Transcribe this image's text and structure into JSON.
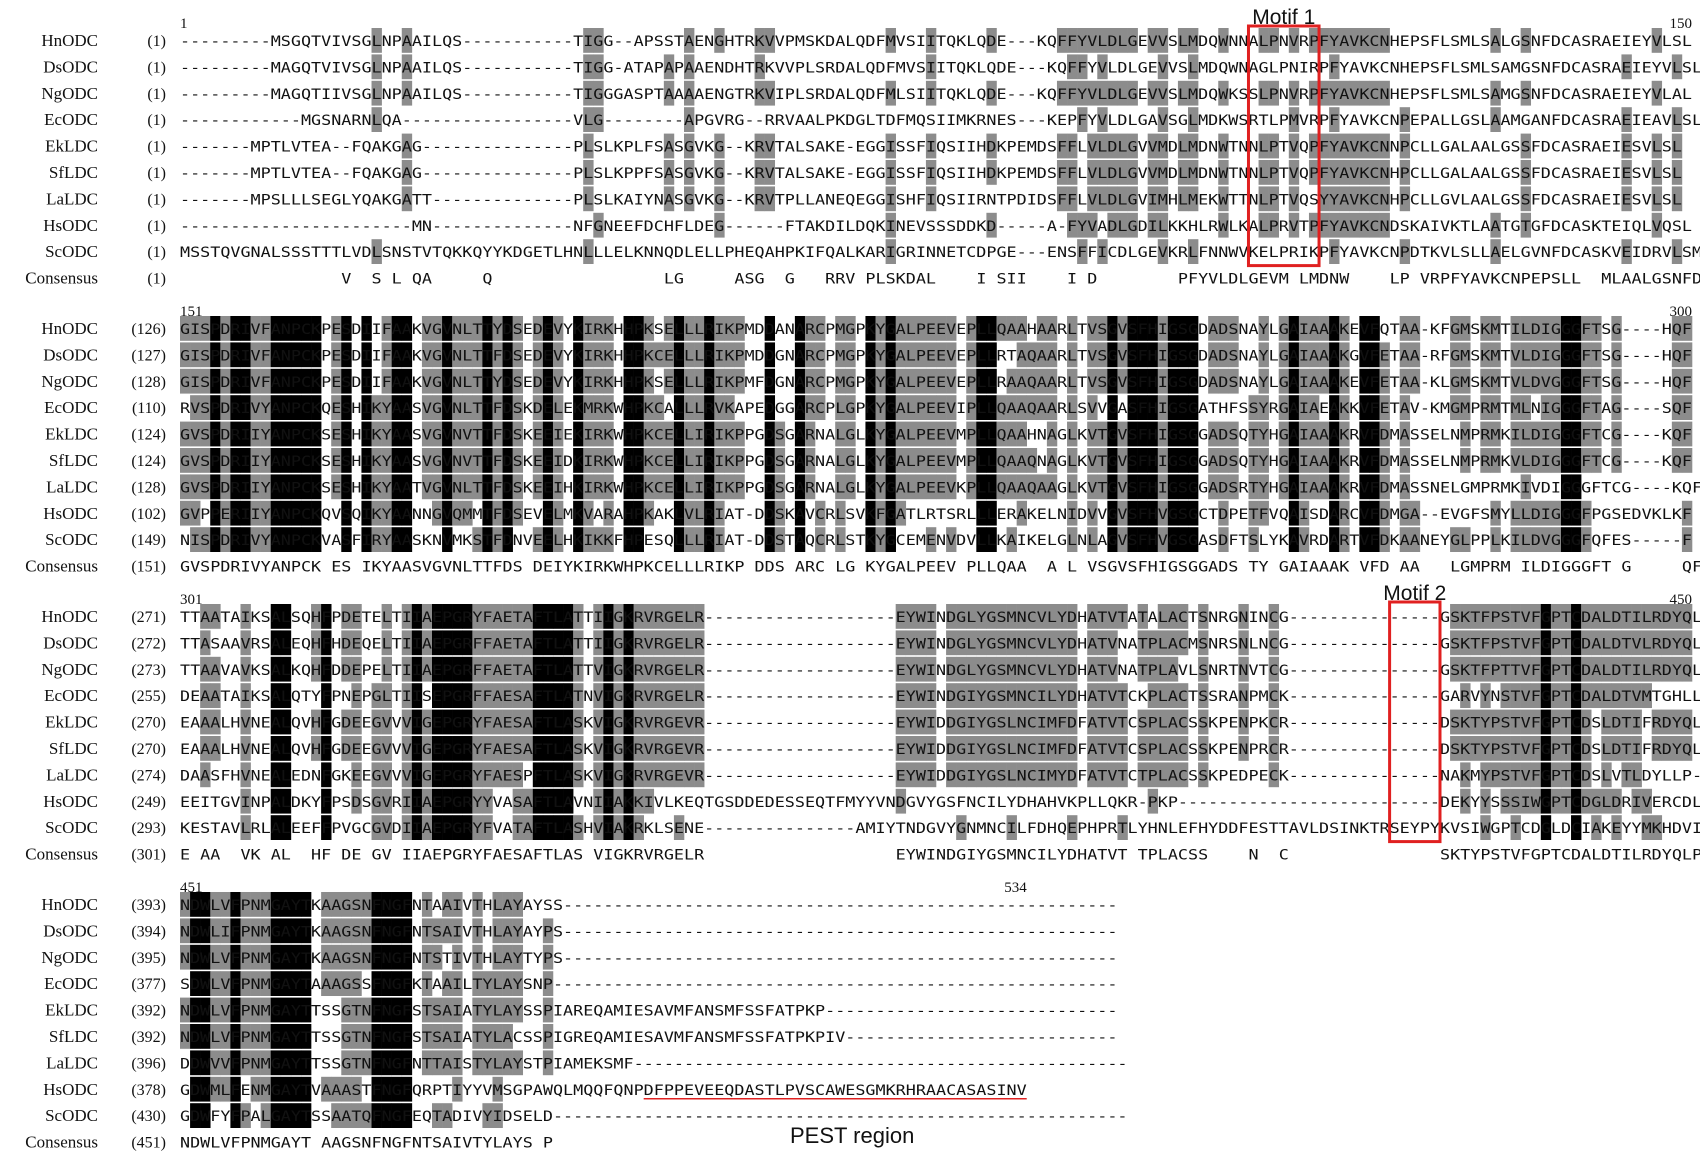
{
  "colors": {
    "identical": "#000000",
    "similar": "#8c8c8c",
    "box": "#e02020",
    "pest_line": "#e02020"
  },
  "motifs": [
    {
      "label": "Motif 1"
    },
    {
      "label": "Motif 2"
    }
  ],
  "pest_label": "PEST region",
  "blocks": [
    {
      "ruler_start": "1",
      "ruler_end": "150",
      "rows": [
        {
          "name": "HnODC",
          "pos": "(1)",
          "seq": "---------MSGQTVIVSGLNPAAILQS-----------TIGG--APSSTAENGHTRKVVPMSKDALQDFMVSIITQKLQDE---KQFFYVLDLGEVVSLMDQWNNALPNVRPFYAVKCNHEPSFLSMLSALGSNFDCASRAEIEYVLSL"
        },
        {
          "name": "DsODC",
          "pos": "(1)",
          "seq": "---------MAGQTVIVSGLNPAAILQS-----------TIGG-ATAPAPAAENDHTRKVVPLSRDALQDFMVSIITQKLQDE---KQFFYVLDLGEVVSLMDQWNAGLPNIRPFYAVKCNHEPSFLSMLSAMGSNFDCASRAEIEYVLSL"
        },
        {
          "name": "NgODC",
          "pos": "(1)",
          "seq": "---------MAGQTIIVSGLNPAAILQS-----------TIGGGASPTAAAAENGTRKVIPLSRDALQDFMLSIITQKLQDE---KQFFYVLDLGEVVSLMDQWKSSLPNVRPFYAVKCNHEPSFLSMLSAMGSNFDCASRAEIEYVLAL"
        },
        {
          "name": "EcODC",
          "pos": "(1)",
          "seq": "------------MGSNARNLQA-----------------VLG--------APGVRG--RRVAALPKDGLTDFMQSIIMKRNES---KEPFYVLDLGAVSGLMDKWSRTLPMVRPFYAVKCNPEPALLGSLAAMGANFDCASRAEIEAVLSL"
        },
        {
          "name": "EkLDC",
          "pos": "(1)",
          "seq": "-------MPTLVTEA--FQAKGAG---------------PLSLKPLFSASGVKG--KRVTALSAKE-EGGISSFIQSIIHDKPEMDSFFLVLDLGVVMDLMDNWTNNLPTVQPFYAVKCNNPCLLGALAALGSSFDCASRAEIESVLSL"
        },
        {
          "name": "SfLDC",
          "pos": "(1)",
          "seq": "-------MPTLVTEA--FQAKGAG---------------PLSLKPPFSASGVKG--KRVTALSAKE-EGGISSFIQSIIHDKPEMDSFFLVLDLGVVMDLMDNWTNNLPTVQPFYAVKCNHPCLLGALAALGSSFDCASRAEIESVLSL"
        },
        {
          "name": "LaLDC",
          "pos": "(1)",
          "seq": "-------MPSLLLSEGLYQAKGATT--------------PLSLKAIYNASGVKG--KRVTPLLANEQEGGISHFIQSIIRNTPDIDSFFLVLDLGVIMHLMEKWTTNLPTVQSYYAVKCNHPCLLGVLAALGSSFDCASRAEIESVLSL"
        },
        {
          "name": "HsODC",
          "pos": "(1)",
          "seq": "-----------------------MN--------------NFGNEEFDCHFLDEG------FTAKDILDQKINEVSSSDDKD-----A-FYVADLGDILKKHLRWLKALPRVTPFYAVKCNDSKAIVKTLAATGTGFDCASKTEIQLVQSL"
        },
        {
          "name": "ScODC",
          "pos": "(1)",
          "seq": "MSSTQVGNALSSSTTTLVDLSNSTVTQKKQYYKDGETLHNLLLELKNNQDLELLPHEQAHPKIFQALKARIGRINNETCDPGE---ENSFFICDLGEVKRLFNNWVKELPRIKPFYAVKCNPDTKVLSLLAELGVNFDCASKVEIDRVLSM"
        },
        {
          "name": "Consensus",
          "pos": "(1)",
          "seq": "                V  S L QA     Q                 LG     ASG  G   RRV PLSKDAL    I SII    I D        PFYVLDLGEVM LMDNW    LP VRPFYAVKCNPEPSLL  MLAALGSNFDCASRAEIE VLSL"
        }
      ]
    },
    {
      "ruler_start": "151",
      "ruler_end": "300",
      "rows": [
        {
          "name": "HnODC",
          "pos": "(126)",
          "seq": "GISPDRIVFANPCKPESDIIFAAKVGVNLTTYDSEDEVYKIRKHHPKSELLLRIKPMDDANARCPMGPKYGALPEEVEPLLQAAHAARLTVSGVSFHIGSGDADSNAYLGAIAAAKEVFQTAA-KFGMSKMTILDIGGGFTSG----HQF"
        },
        {
          "name": "DsODC",
          "pos": "(127)",
          "seq": "GISPDRIVFANPCKPESDIIFAAKVGVNLTTFDSEDEVYKIRKHHPKCELLLRIKPMDDGNARCPMGPKYGALPEEVEPLLRTAQAARLTVSGVSFHIGSGDADSNAYLGAIAAAKGVFETAA-RFGMSKMTVLDIGGGFTSG----HQF"
        },
        {
          "name": "NgODC",
          "pos": "(128)",
          "seq": "GISPDRIVFANPCKPESDIIFAAKVGVNLTTYDSEDEVYKIRKHHPKSELLLRIKPMFDGNARCPMGPKYGALPEEVEPLLRAAQAARLTVSGVSFHIGSGDADSNAYLGAIAAAKEVFETAA-KLGMSKMTVLDVGGGFTSG----HQF"
        },
        {
          "name": "EcODC",
          "pos": "(110)",
          "seq": "RVSPDRIVYANPCKQESHIKYAASVGVNLTTFDSKDELEKMRKWHPKCALLLRVKAPEDGGARCPLGPKYGALPEEVIPLLQAAQAARLSVVGASFHIGSGATHFSSYRGAIAEAKKVFETAV-KMGMPRMTMLNIGGGFTAG----SQF"
        },
        {
          "name": "EkLDC",
          "pos": "(124)",
          "seq": "GVSPDRIIYANPCKSESHIKYAASVGVNVTTFDSKEEIEKIRKWHPKCELLIRIKPPGDSGARNALGLKYGALPEEVMPLLQAAHNAGLKVTGVSFHIGSGGADSQTYHGAIAAAKRVFDMASSELNMPRMKILDIGGGFTCG----KQF"
        },
        {
          "name": "SfLDC",
          "pos": "(124)",
          "seq": "GVSPDRIIYANPCKSESHIKYAASVGVNVTTFDSKEEIDKIRKWHPKCELLIRIKPPGDSGARNALGLKYGALPEEVMPLLQAAQNAGLKVTGVSFHIGSGGADSQTYHGAIAAAKRVFDMASSELNMPRMKVLDIGGGFTCG----KQF"
        },
        {
          "name": "LaLDC",
          "pos": "(128)",
          "seq": "GVSPDRIIYANPCKSESHIKYAATVGVNLTTFDSKEEIHKIRKWHPKCELLIRIKPPGDSGARNALGLKYGALPEEVKPLLQAAQAAGLKVTGVSFHIGSGGADSRTYHGAIAAAKRVFDMASSNELGMPRMKIVDIGGGFTCG----KQF"
        },
        {
          "name": "HsODC",
          "pos": "(102)",
          "seq": "GVPPERIIYANPCKQVSQIKYAANNGVQMMTFDSEVELMKVARAHPKAKLVLRIAT-DDSKAVCRLSVKFGATLRTSRLLLERAKELNIDVVGVSFHVGSGCTDPETFVQAISDARCVFDMGA--EVGFSMYLLDIGGGFPGSEDVKLKF"
        },
        {
          "name": "ScODC",
          "pos": "(149)",
          "seq": "NISPDRIVYANPCKVASFIRYAASKNVMKSTFDNVEELHKIKKFHPESQLLLRIAT-DDSTAQCRLSTKYGCEMENVDVLLKAIKELGLNLAGVSFHVGSGASDFTSLYKAVRDARTVFDKAANEYGLPPLKILDVGGGFQFES-----F"
        },
        {
          "name": "Consensus",
          "pos": "(151)",
          "seq": "GVSPDRIVYANPCK ES IKYAASVGVNLTTFDS DEIYKIRKWHPKCELLLRIKP DDS ARC LG KYGALPEEV PLLQAA  A L VSGVSFHIGSGGADS TY GAIAAAK VFD AA   LGMPRM ILDIGGGFT G     QF"
        }
      ]
    },
    {
      "ruler_start": "301",
      "ruler_end": "450",
      "rows": [
        {
          "name": "HnODC",
          "pos": "(271)",
          "seq": "TTAATAIKSALSQHFPDETELTIIAEPGRYFAETAFTLATTIIGKRVRGELR-------------------EYWINDGLYGSMNCVLYDHATVTATALACTSNRGNINCG---------------GSKTFPSTVFGPTCDALDTILRDYQLP-ELQV"
        },
        {
          "name": "DsODC",
          "pos": "(272)",
          "seq": "TTASAAVRSALEQHFHDEQELTIIAEPGRFFAETAFTLATTIIGKRVRGELR-------------------EYWINDGLYGSMNCVLYDHATVNATPLACMSNRSNLNCG---------------GSKTFPSTVFGPTCDALDTVLRDYQLP-ELQV"
        },
        {
          "name": "NgODC",
          "pos": "(273)",
          "seq": "TTAAVAVKSALKQHFDDEPELTIIAEPGRFFAETAFTLATTVIGKRVRGELR-------------------EYWINDGLYGSMNCVLYDHATVNATPLAVLSNRTNVTCG---------------GSKTFPTTVFGPTCDALDTILRDYQLP-ELQV"
        },
        {
          "name": "EcODC",
          "pos": "(255)",
          "seq": "DEAATAIKSALQTYFPNEPGLTIISEPGRFFAESAFTLATNVIGKRVRGELR-------------------EYWINDGIYGSMNCILYDHATVTCKPLACTSSRANPMCK---------------GARVYNSTVFGPTCDALDTVMTGHLLP-DLQV"
        },
        {
          "name": "EkLDC",
          "pos": "(270)",
          "seq": "EAAALHVNEALQVHFGDEEGVVVIGEPGRYFAESAFTLASKVIGKRVRGEVR-------------------EYWIDDGIYGSLNCIMFDFATVTCSPLACSSKPENPKCR---------------DSKTYPSTVFGPTCDSLDTIFRDYQLP-ELEL"
        },
        {
          "name": "SfLDC",
          "pos": "(270)",
          "seq": "EAAALHVNEALQVHFGDEEGVVVIGEPGRYFAESAFTLASKVIGKRVRGEVR-------------------EYWIDDGIYGSLNCIMFDFATVTCSPLACSSKPENPRCR---------------DSKTYPSTVFGPTCDSLDTIFRDYQLP-ELEL"
        },
        {
          "name": "LaLDC",
          "pos": "(274)",
          "seq": "DAASFHVNEALEDNFGKEEGVVVIGEPGRYFAESPFTLASKVIGKRVRGEVR-------------------EYWIDDGIYGSLNCIMYDFATVTCTPLACSSKPEDPECK---------------NAKMYPSTVFGPTCDSLVTLDYLLP-ELEL"
        },
        {
          "name": "HsODC",
          "pos": "(249)",
          "seq": "EEITGVINPALDKYFPSDSGVRIIAEPGRYYVASAFTLAVNIIAKKIVLKEQTGSDDEDESSEQTFMYYVNDGVYGSFNCILYDHAHVKPLLQKR-PKP--------------------------DEKYYSSSIWGPTCDGLDRIVERCDLP-EMHV"
        },
        {
          "name": "ScODC",
          "pos": "(293)",
          "seq": "KESTAVLRLALEEFFPVGCGVDIIAEPGRYFVATAFTLASHVIAKRKLSENE---------------AMIYTNDGVYGNMNCILFDHQEPHPRTLYHNLEFHYDDFESTTAVLDSINKTRSEYPYKVSIWGPTCDGLDCIAKEYYMKHDVIV"
        },
        {
          "name": "Consensus",
          "pos": "(301)",
          "seq": "E AA  VK AL  HF DE GV IIAEPGRYFAESAFTLAS VIGKRVRGELR                   EYWINDGIYGSMNCILYDHATVT TPLACSS    N  C               SKTYPSTVFGPTCDALDTILRDYQLP EL V"
        }
      ]
    },
    {
      "ruler_start": "451",
      "ruler_end": "534",
      "rows": [
        {
          "name": "HnODC",
          "pos": "(393)",
          "seq": "NDWLVFPNMGAYTKAAGSNFNGFNTAAIVTHLAYAYSS-------------------------------------------------------"
        },
        {
          "name": "DsODC",
          "pos": "(394)",
          "seq": "NDWLIFPNMGAYTKAAGSNFNGFNTSAIVTHLAYAYPS-------------------------------------------------------"
        },
        {
          "name": "NgODC",
          "pos": "(395)",
          "seq": "NDWLVFPNMGAYTKAAGSNFNGFNTSTIVTHLAYTYPS-------------------------------------------------------"
        },
        {
          "name": "EcODC",
          "pos": "(377)",
          "seq": "SDWLVFPNMGAYTAAAGSSFNGFKTAAILTYLAYSNP--------------------------------------------------------"
        },
        {
          "name": "EkLDC",
          "pos": "(392)",
          "seq": "NDWLVFPNMGAYTTSSGTNFNGFSTSAIATYLAYSSPIAREQAMIESAVMFANSMFSSFATPKP-----------------------------"
        },
        {
          "name": "SfLDC",
          "pos": "(392)",
          "seq": "NDWLVFPNMGAYTTSSGTNFNGFSTSAIATYLACSSPIGREQAMIESAVMFANSMFSSFATPKPIV---------------------------"
        },
        {
          "name": "LaLDC",
          "pos": "(396)",
          "seq": "DDWVVFPNMGAYTTSSGTNFNGFNTTAISTYLAYSTPIAMEKSMF-------------------------------------------------"
        },
        {
          "name": "HsODC",
          "pos": "(378)",
          "seq": "GDWMLFENMGAYTVAAASTFNGFQRPTIYYVMSGPAWQLMQQFQNPDFPPEVEEQDASTLPVSCAWESGMKRHRAACASASINV"
        },
        {
          "name": "ScODC",
          "pos": "(430)",
          "seq": "GDWFYFPALGAYTSSAATQFNGFEQTADIVYIDSELD---------------------------------------------------------"
        },
        {
          "name": "Consensus",
          "pos": "(451)",
          "seq": "NDWLVFPNMGAYT AAGSNFNGFNTSAIVTYLAYS P"
        }
      ]
    }
  ]
}
